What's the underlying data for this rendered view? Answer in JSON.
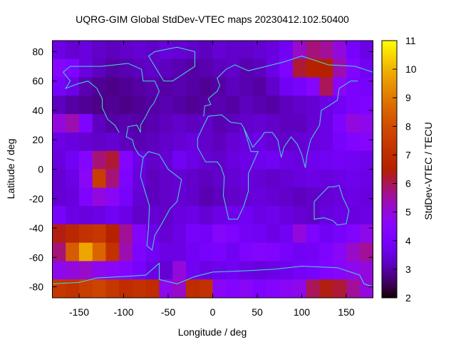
{
  "chart_data": {
    "type": "heatmap",
    "title": "UQRG-GIM Global StdDev-VTEC maps 20230412.102.50400",
    "xlabel": "Longitude / deg",
    "ylabel": "Latitude / deg",
    "colorbar_label": "StdDev-VTEC / TECU",
    "xlim": [
      -180,
      180
    ],
    "ylim": [
      -87.5,
      87.5
    ],
    "xticks": [
      "-150",
      "-100",
      "-50",
      "0",
      "50",
      "100",
      "150"
    ],
    "yticks": [
      "-80",
      "-60",
      "-40",
      "-20",
      "0",
      "20",
      "40",
      "60",
      "80"
    ],
    "cbrange": [
      2,
      11
    ],
    "cbticks": [
      "2",
      "3",
      "4",
      "5",
      "6",
      "7",
      "8",
      "9",
      "10",
      "11"
    ],
    "palette": "black-purple-red-orange-yellow",
    "coastline_color": "#40e0d0",
    "lon_edges": [
      -180,
      180,
      15
    ],
    "lat_edges": [
      87.5,
      -87.5,
      -12.5
    ],
    "values": [
      [
        3.6,
        3.4,
        3.5,
        3.3,
        3.2,
        3.3,
        3.4,
        3.3,
        3.5,
        3.4,
        3.3,
        3.2,
        3.4,
        3.3,
        3.3,
        3.4,
        3.5,
        3.8,
        5.2,
        5.8,
        5.6,
        5.0,
        4.0,
        3.6
      ],
      [
        4.5,
        4.2,
        3.5,
        3.2,
        3.0,
        3.1,
        3.2,
        3.3,
        3.2,
        3.1,
        3.0,
        3.1,
        3.2,
        3.3,
        3.1,
        3.2,
        3.6,
        4.2,
        6.2,
        6.6,
        6.5,
        5.4,
        4.3,
        3.8
      ],
      [
        4.0,
        3.6,
        3.1,
        2.9,
        2.8,
        2.9,
        3.0,
        3.1,
        3.0,
        3.1,
        3.0,
        2.9,
        3.0,
        3.2,
        3.1,
        3.0,
        3.3,
        3.8,
        4.0,
        4.5,
        6.0,
        4.6,
        4.1,
        4.0
      ],
      [
        3.2,
        3.0,
        2.9,
        2.8,
        2.9,
        2.8,
        2.9,
        3.0,
        3.1,
        3.0,
        2.9,
        3.0,
        3.1,
        3.0,
        3.2,
        3.1,
        3.0,
        3.2,
        3.3,
        3.4,
        3.6,
        3.8,
        4.1,
        4.2
      ],
      [
        5.0,
        5.4,
        4.2,
        3.2,
        3.0,
        3.1,
        3.0,
        3.1,
        3.2,
        3.3,
        3.2,
        3.3,
        3.1,
        3.2,
        3.3,
        3.4,
        3.3,
        3.2,
        3.2,
        3.4,
        3.6,
        4.2,
        5.0,
        4.8
      ],
      [
        3.6,
        3.5,
        3.4,
        3.3,
        3.4,
        3.2,
        3.1,
        3.2,
        3.3,
        3.4,
        3.5,
        3.3,
        3.2,
        3.4,
        3.5,
        3.6,
        3.4,
        3.3,
        3.4,
        3.5,
        3.6,
        4.0,
        4.3,
        4.5
      ],
      [
        3.5,
        3.8,
        4.4,
        5.8,
        6.2,
        4.4,
        3.6,
        3.3,
        3.4,
        3.8,
        3.6,
        3.4,
        3.3,
        3.5,
        3.6,
        3.7,
        3.8,
        3.6,
        3.5,
        3.7,
        3.8,
        3.9,
        3.8,
        3.7
      ],
      [
        3.4,
        3.6,
        4.6,
        7.6,
        5.8,
        4.2,
        3.5,
        3.2,
        3.3,
        3.4,
        3.3,
        3.2,
        3.3,
        3.4,
        3.5,
        3.4,
        3.3,
        3.4,
        3.5,
        3.6,
        3.5,
        3.6,
        3.7,
        3.6
      ],
      [
        3.4,
        3.5,
        4.2,
        5.0,
        4.6,
        4.0,
        3.4,
        3.2,
        3.3,
        3.4,
        3.3,
        3.1,
        3.2,
        3.3,
        3.4,
        3.5,
        3.4,
        3.3,
        3.2,
        3.3,
        3.4,
        3.5,
        3.6,
        3.5
      ],
      [
        4.0,
        3.6,
        3.5,
        3.6,
        3.8,
        3.6,
        3.3,
        3.4,
        3.3,
        3.5,
        3.6,
        3.4,
        3.6,
        3.7,
        3.8,
        3.6,
        3.7,
        3.5,
        3.4,
        3.3,
        3.5,
        3.6,
        3.5,
        3.6
      ],
      [
        6.4,
        6.8,
        7.2,
        7.4,
        6.6,
        5.6,
        4.4,
        3.6,
        3.4,
        3.6,
        4.0,
        3.9,
        4.5,
        4.2,
        3.9,
        3.8,
        3.6,
        3.8,
        5.0,
        4.2,
        3.8,
        4.0,
        4.3,
        4.8
      ],
      [
        5.8,
        8.4,
        9.8,
        8.6,
        7.2,
        5.4,
        4.2,
        3.8,
        3.6,
        3.6,
        3.8,
        4.0,
        4.1,
        3.8,
        4.2,
        4.4,
        4.3,
        4.0,
        3.8,
        3.9,
        4.2,
        4.6,
        5.2,
        5.6
      ],
      [
        4.8,
        5.0,
        5.2,
        4.8,
        4.6,
        4.4,
        4.0,
        3.6,
        3.4,
        5.0,
        3.8,
        3.6,
        3.7,
        3.8,
        3.6,
        3.5,
        3.6,
        3.7,
        3.9,
        4.0,
        4.3,
        4.5,
        4.8,
        5.0
      ],
      [
        7.4,
        7.2,
        7.6,
        7.8,
        7.4,
        7.0,
        7.2,
        7.0,
        4.8,
        5.2,
        7.0,
        7.2,
        4.6,
        4.4,
        4.6,
        4.2,
        4.4,
        4.6,
        4.8,
        6.0,
        6.4,
        6.2,
        5.6,
        5.0
      ]
    ]
  }
}
